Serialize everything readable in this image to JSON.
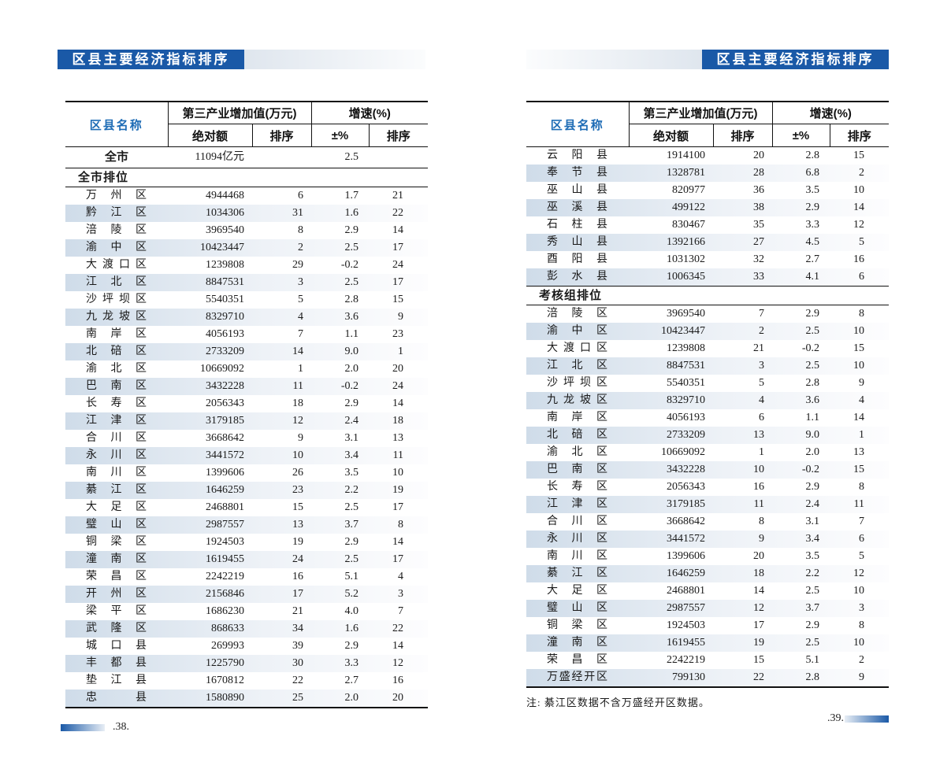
{
  "colors": {
    "title_bar_bg": "#1a59a7",
    "name_header_blue": "#1e6cb5",
    "row_shade": "#cfdce9",
    "rule": "#111111"
  },
  "title": "区县主要经济指标排序",
  "table_header": {
    "name_col": "区县名称",
    "group_value": "第三产业增加值(万元)",
    "group_growth": "增速(%)",
    "abs": "绝对额",
    "rank": "排序",
    "pct": "±%",
    "rank2": "排序"
  },
  "left_page": {
    "page_number": ".38.",
    "summary": {
      "name": "全市",
      "abs": "11094亿元",
      "rank": "",
      "pct": "2.5",
      "rank2": ""
    },
    "sections": [
      {
        "header": "全市排位",
        "rows": [
          [
            "万州区",
            "4944468",
            "6",
            "1.7",
            "21"
          ],
          [
            "黔江区",
            "1034306",
            "31",
            "1.6",
            "22"
          ],
          [
            "涪陵区",
            "3969540",
            "8",
            "2.9",
            "14"
          ],
          [
            "渝中区",
            "10423447",
            "2",
            "2.5",
            "17"
          ],
          [
            "大渡口区",
            "1239808",
            "29",
            "-0.2",
            "24"
          ],
          [
            "江北区",
            "8847531",
            "3",
            "2.5",
            "17"
          ],
          [
            "沙坪坝区",
            "5540351",
            "5",
            "2.8",
            "15"
          ],
          [
            "九龙坡区",
            "8329710",
            "4",
            "3.6",
            "9"
          ],
          [
            "南岸区",
            "4056193",
            "7",
            "1.1",
            "23"
          ],
          [
            "北碚区",
            "2733209",
            "14",
            "9.0",
            "1"
          ],
          [
            "渝北区",
            "10669092",
            "1",
            "2.0",
            "20"
          ],
          [
            "巴南区",
            "3432228",
            "11",
            "-0.2",
            "24"
          ],
          [
            "长寿区",
            "2056343",
            "18",
            "2.9",
            "14"
          ],
          [
            "江津区",
            "3179185",
            "12",
            "2.4",
            "18"
          ],
          [
            "合川区",
            "3668642",
            "9",
            "3.1",
            "13"
          ],
          [
            "永川区",
            "3441572",
            "10",
            "3.4",
            "11"
          ],
          [
            "南川区",
            "1399606",
            "26",
            "3.5",
            "10"
          ],
          [
            "綦江区",
            "1646259",
            "23",
            "2.2",
            "19"
          ],
          [
            "大足区",
            "2468801",
            "15",
            "2.5",
            "17"
          ],
          [
            "璧山区",
            "2987557",
            "13",
            "3.7",
            "8"
          ],
          [
            "铜梁区",
            "1924503",
            "19",
            "2.9",
            "14"
          ],
          [
            "潼南区",
            "1619455",
            "24",
            "2.5",
            "17"
          ],
          [
            "荣昌区",
            "2242219",
            "16",
            "5.1",
            "4"
          ],
          [
            "开州区",
            "2156846",
            "17",
            "5.2",
            "3"
          ],
          [
            "梁平区",
            "1686230",
            "21",
            "4.0",
            "7"
          ],
          [
            "武隆区",
            "868633",
            "34",
            "1.6",
            "22"
          ],
          [
            "城口县",
            "269993",
            "39",
            "2.9",
            "14"
          ],
          [
            "丰都县",
            "1225790",
            "30",
            "3.3",
            "12"
          ],
          [
            "垫江县",
            "1670812",
            "22",
            "2.7",
            "16"
          ],
          [
            "忠县",
            "1580890",
            "25",
            "2.0",
            "20"
          ]
        ]
      }
    ]
  },
  "right_page": {
    "page_number": ".39.",
    "note": "注: 綦江区数据不含万盛经开区数据。",
    "sections": [
      {
        "header": "",
        "rows": [
          [
            "云阳县",
            "1914100",
            "20",
            "2.8",
            "15"
          ],
          [
            "奉节县",
            "1328781",
            "28",
            "6.8",
            "2"
          ],
          [
            "巫山县",
            "820977",
            "36",
            "3.5",
            "10"
          ],
          [
            "巫溪县",
            "499122",
            "38",
            "2.9",
            "14"
          ],
          [
            "石柱县",
            "830467",
            "35",
            "3.3",
            "12"
          ],
          [
            "秀山县",
            "1392166",
            "27",
            "4.5",
            "5"
          ],
          [
            "酉阳县",
            "1031302",
            "32",
            "2.7",
            "16"
          ],
          [
            "彭水县",
            "1006345",
            "33",
            "4.1",
            "6"
          ]
        ]
      },
      {
        "header": "考核组排位",
        "rows": [
          [
            "涪陵区",
            "3969540",
            "7",
            "2.9",
            "8"
          ],
          [
            "渝中区",
            "10423447",
            "2",
            "2.5",
            "10"
          ],
          [
            "大渡口区",
            "1239808",
            "21",
            "-0.2",
            "15"
          ],
          [
            "江北区",
            "8847531",
            "3",
            "2.5",
            "10"
          ],
          [
            "沙坪坝区",
            "5540351",
            "5",
            "2.8",
            "9"
          ],
          [
            "九龙坡区",
            "8329710",
            "4",
            "3.6",
            "4"
          ],
          [
            "南岸区",
            "4056193",
            "6",
            "1.1",
            "14"
          ],
          [
            "北碚区",
            "2733209",
            "13",
            "9.0",
            "1"
          ],
          [
            "渝北区",
            "10669092",
            "1",
            "2.0",
            "13"
          ],
          [
            "巴南区",
            "3432228",
            "10",
            "-0.2",
            "15"
          ],
          [
            "长寿区",
            "2056343",
            "16",
            "2.9",
            "8"
          ],
          [
            "江津区",
            "3179185",
            "11",
            "2.4",
            "11"
          ],
          [
            "合川区",
            "3668642",
            "8",
            "3.1",
            "7"
          ],
          [
            "永川区",
            "3441572",
            "9",
            "3.4",
            "6"
          ],
          [
            "南川区",
            "1399606",
            "20",
            "3.5",
            "5"
          ],
          [
            "綦江区",
            "1646259",
            "18",
            "2.2",
            "12"
          ],
          [
            "大足区",
            "2468801",
            "14",
            "2.5",
            "10"
          ],
          [
            "璧山区",
            "2987557",
            "12",
            "3.7",
            "3"
          ],
          [
            "铜梁区",
            "1924503",
            "17",
            "2.9",
            "8"
          ],
          [
            "潼南区",
            "1619455",
            "19",
            "2.5",
            "10"
          ],
          [
            "荣昌区",
            "2242219",
            "15",
            "5.1",
            "2"
          ],
          [
            "万盛经开区",
            "799130",
            "22",
            "2.8",
            "9"
          ]
        ]
      }
    ]
  }
}
